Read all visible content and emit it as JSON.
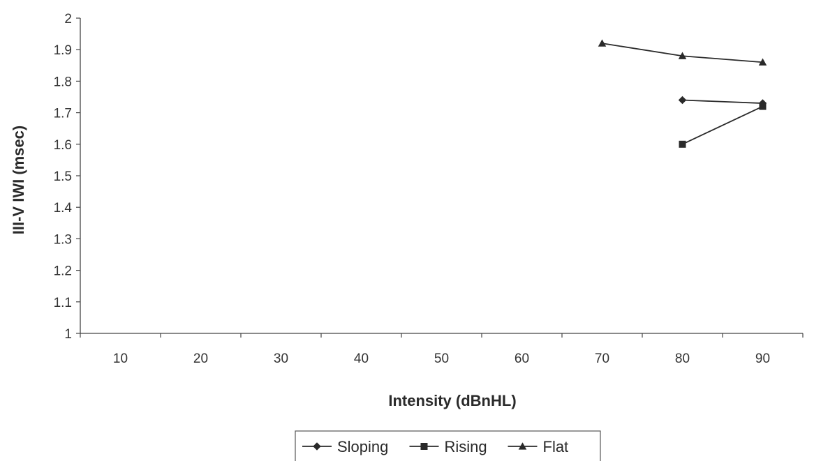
{
  "chart_data": {
    "type": "line",
    "xlabel": "Intensity (dBnHL)",
    "ylabel": "III-V IWI (msec)",
    "categories": [
      10,
      20,
      30,
      40,
      50,
      60,
      70,
      80,
      90
    ],
    "ylim": [
      1,
      2
    ],
    "yticks": [
      "1",
      "1.1",
      "1.2",
      "1.3",
      "1.4",
      "1.5",
      "1.6",
      "1.7",
      "1.8",
      "1.9",
      "2"
    ],
    "grid": false,
    "legend_position": "bottom",
    "series": [
      {
        "name": "Sloping",
        "marker": "diamond",
        "color": "#2a2a2a",
        "points": [
          [
            80,
            1.74
          ],
          [
            90,
            1.73
          ]
        ]
      },
      {
        "name": "Rising",
        "marker": "square",
        "color": "#2a2a2a",
        "points": [
          [
            80,
            1.6
          ],
          [
            90,
            1.72
          ]
        ]
      },
      {
        "name": "Flat",
        "marker": "triangle",
        "color": "#2a2a2a",
        "points": [
          [
            70,
            1.92
          ],
          [
            80,
            1.88
          ],
          [
            90,
            1.86
          ]
        ]
      }
    ]
  }
}
